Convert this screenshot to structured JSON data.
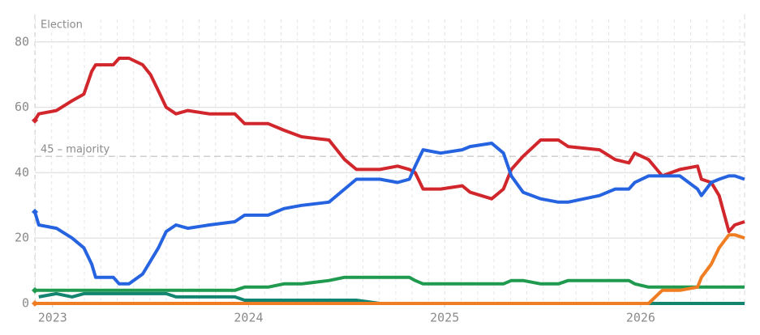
{
  "chart_data": {
    "type": "line",
    "annotation": "Election",
    "majority": {
      "value": 45,
      "label": "45 – majority"
    },
    "x": [
      2022.91,
      2022.93,
      2023.02,
      2023.1,
      2023.16,
      2023.2,
      2023.22,
      2023.31,
      2023.34,
      2023.39,
      2023.46,
      2023.5,
      2023.54,
      2023.58,
      2023.63,
      2023.69,
      2023.8,
      2023.93,
      2023.98,
      2024.1,
      2024.18,
      2024.27,
      2024.41,
      2024.49,
      2024.55,
      2024.67,
      2024.76,
      2024.82,
      2024.85,
      2024.89,
      2024.98,
      2025.09,
      2025.13,
      2025.24,
      2025.3,
      2025.34,
      2025.4,
      2025.49,
      2025.58,
      2025.63,
      2025.79,
      2025.87,
      2025.94,
      2025.97,
      2026.04,
      2026.11,
      2026.2,
      2026.29,
      2026.31,
      2026.36,
      2026.4,
      2026.45,
      2026.48,
      2026.53
    ],
    "series": [
      {
        "color": "#d1262b",
        "values": [
          56,
          58,
          59,
          62,
          64,
          71,
          73,
          73,
          75,
          75,
          73,
          70,
          65,
          60,
          58,
          59,
          58,
          58,
          55,
          55,
          53,
          51,
          50,
          44,
          41,
          41,
          42,
          41,
          40,
          35,
          35,
          36,
          34,
          32,
          35,
          41,
          45,
          50,
          50,
          48,
          47,
          44,
          43,
          46,
          44,
          39,
          41,
          42,
          38,
          37,
          33,
          22,
          24,
          25
        ]
      },
      {
        "color": "#2563e0",
        "values": [
          28,
          24,
          23,
          20,
          17,
          12,
          8,
          8,
          6,
          6,
          9,
          13,
          17,
          22,
          24,
          23,
          24,
          25,
          27,
          27,
          29,
          30,
          31,
          35,
          38,
          38,
          37,
          38,
          42,
          47,
          46,
          47,
          48,
          49,
          46,
          39,
          34,
          32,
          31,
          31,
          33,
          35,
          35,
          37,
          39,
          39,
          39,
          35,
          33,
          37,
          38,
          39,
          39,
          38
        ]
      },
      {
        "color": "#1f9a4e",
        "values": [
          4,
          4,
          4,
          4,
          4,
          4,
          4,
          4,
          4,
          4,
          4,
          4,
          4,
          4,
          4,
          4,
          4,
          4,
          5,
          5,
          6,
          6,
          7,
          8,
          8,
          8,
          8,
          8,
          7,
          6,
          6,
          6,
          6,
          6,
          6,
          7,
          7,
          6,
          6,
          7,
          7,
          7,
          7,
          6,
          5,
          5,
          5,
          5,
          5,
          5,
          5,
          5,
          5,
          5
        ]
      },
      {
        "color": "#13846e",
        "values": [
          null,
          2,
          3,
          2,
          3,
          3,
          3,
          3,
          3,
          3,
          3,
          3,
          3,
          3,
          2,
          2,
          2,
          2,
          1,
          1,
          1,
          1,
          1,
          1,
          1,
          0,
          0,
          0,
          0,
          0,
          0,
          0,
          0,
          0,
          0,
          0,
          0,
          0,
          0,
          0,
          0,
          0,
          0,
          0,
          0,
          0,
          0,
          0,
          0,
          0,
          0,
          0,
          0,
          0
        ]
      },
      {
        "color": "#f07d22",
        "values": [
          0,
          0,
          0,
          0,
          0,
          0,
          0,
          0,
          0,
          0,
          0,
          0,
          0,
          0,
          0,
          0,
          0,
          0,
          0,
          0,
          0,
          0,
          0,
          0,
          0,
          0,
          0,
          0,
          0,
          0,
          0,
          0,
          0,
          0,
          0,
          0,
          0,
          0,
          0,
          0,
          0,
          0,
          0,
          0,
          0,
          4,
          4,
          5,
          8,
          12,
          17,
          21,
          21,
          20
        ]
      }
    ],
    "xlim": [
      2022.91,
      2026.53
    ],
    "xticks": [
      2023,
      2024,
      2025,
      2026
    ],
    "ylim": [
      0,
      88
    ],
    "yticks": [
      0,
      20,
      40,
      60,
      80
    ],
    "grid": true
  }
}
